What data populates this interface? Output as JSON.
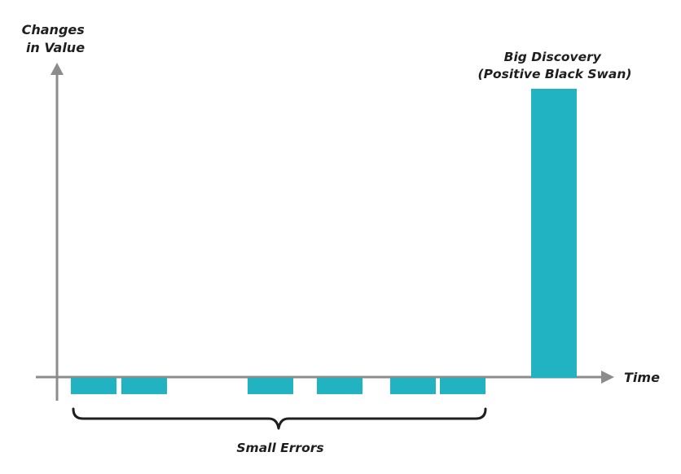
{
  "chart_data": {
    "type": "bar",
    "title": "",
    "ylabel": [
      "Changes",
      "in Value"
    ],
    "xlabel": "Time",
    "ylim": [
      -1,
      16
    ],
    "grid": false,
    "bars": [
      {
        "label": "small error 1",
        "value": -0.9
      },
      {
        "label": "small error 2",
        "value": -0.9
      },
      {
        "label": "small error 3",
        "value": -0.9
      },
      {
        "label": "small error 4",
        "value": -0.9
      },
      {
        "label": "small error 5",
        "value": -0.9
      },
      {
        "label": "small error 6",
        "value": -0.9
      },
      {
        "label": "big discovery",
        "value": 16
      }
    ],
    "annotations": {
      "big_discovery": [
        "Big Discovery",
        "(Positive Black Swan)"
      ],
      "small_errors": "Small Errors"
    },
    "colors": {
      "bar": "#21b3c1",
      "axis": "#8c8c8c",
      "brace": "#1f1f1f"
    }
  }
}
